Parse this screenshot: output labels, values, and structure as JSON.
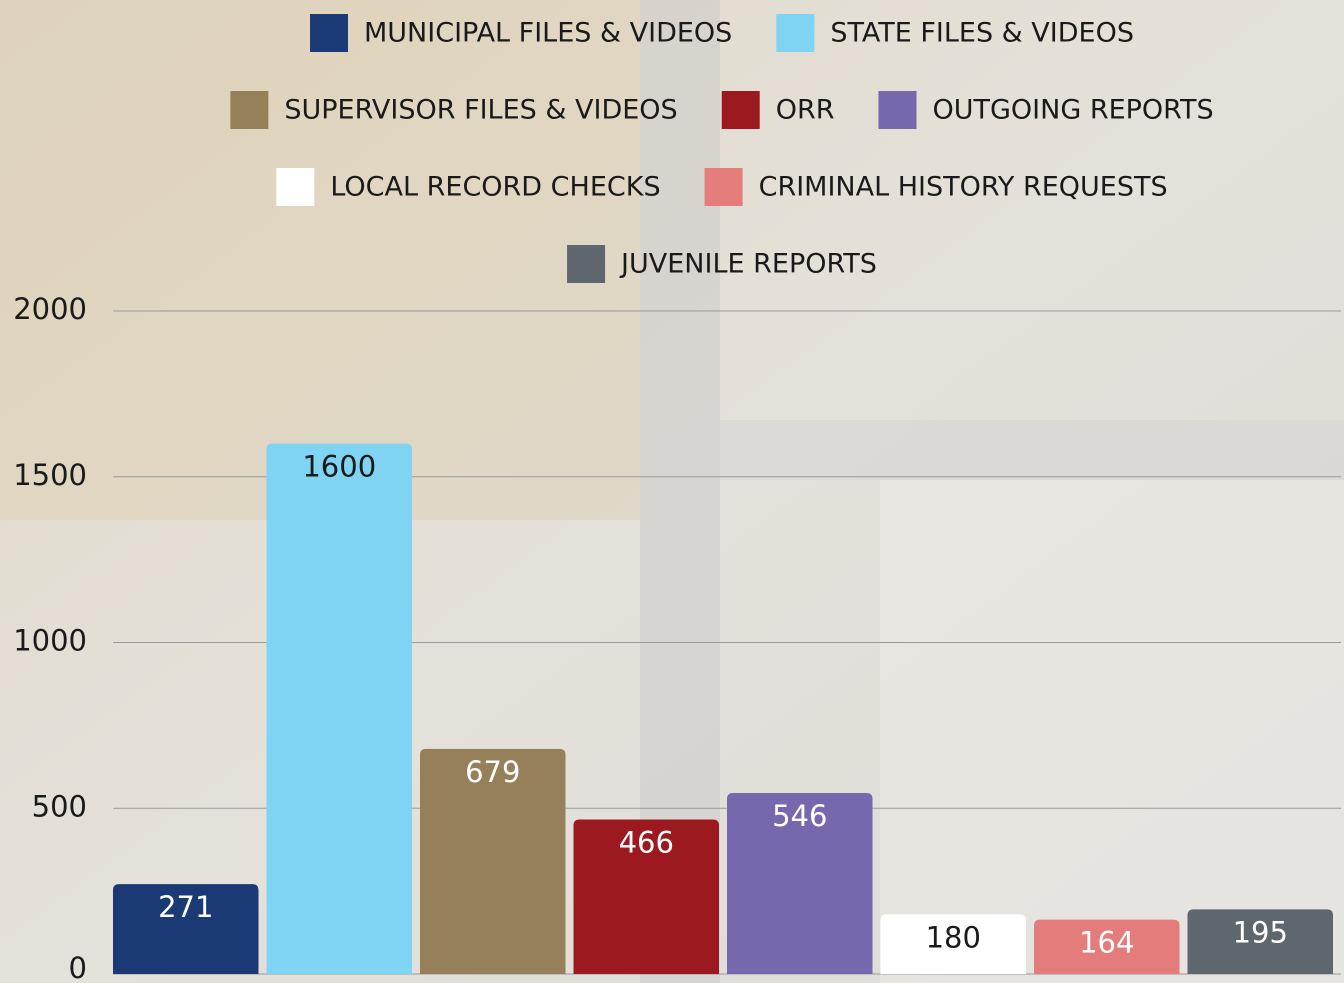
{
  "chart_data": {
    "type": "bar",
    "series": [
      {
        "name": "MUNICIPAL FILES & VIDEOS",
        "color": "#1b3a75",
        "label_color": "#ffffff",
        "values": [
          271
        ]
      },
      {
        "name": "STATE FILES & VIDEOS",
        "color": "#7fd4f4",
        "label_color": "#1a1a1a",
        "values": [
          1600
        ]
      },
      {
        "name": "SUPERVISOR FILES & VIDEOS",
        "color": "#96805a",
        "label_color": "#ffffff",
        "values": [
          679
        ]
      },
      {
        "name": "ORR",
        "color": "#9c1a1f",
        "label_color": "#ffffff",
        "values": [
          466
        ]
      },
      {
        "name": "OUTGOING REPORTS",
        "color": "#7767ad",
        "label_color": "#ffffff",
        "values": [
          546
        ]
      },
      {
        "name": "LOCAL RECORD CHECKS",
        "color": "#ffffff",
        "label_color": "#1a1a1a",
        "values": [
          180
        ]
      },
      {
        "name": "CRIMINAL HISTORY REQUESTS",
        "color": "#e57c7c",
        "label_color": "#ffffff",
        "values": [
          164
        ]
      },
      {
        "name": "JUVENILE REPORTS",
        "color": "#5f676e",
        "label_color": "#ffffff",
        "values": [
          195
        ]
      }
    ],
    "ylim": [
      0,
      2000
    ],
    "yticks": [
      0,
      500,
      1000,
      1500,
      2000
    ],
    "grid": true,
    "legend": "top"
  }
}
